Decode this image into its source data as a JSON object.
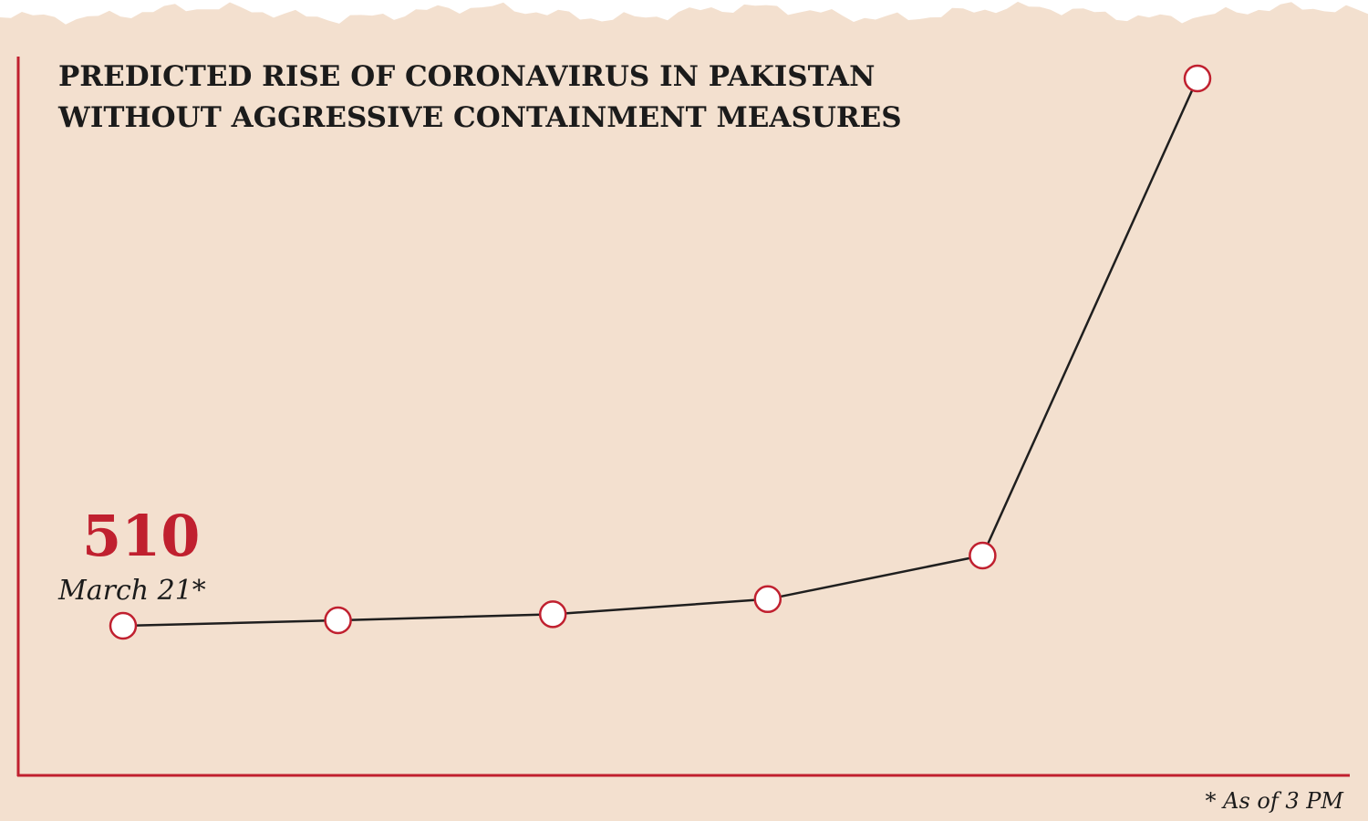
{
  "title_lines": [
    "PREDICTED RISE OF CORONAVIRUS IN PAKISTAN",
    "WITHOUT AGGRESSIVE CONTAINMENT MEASURES"
  ],
  "footnote": "* As of 3 PM",
  "colors": {
    "background": "#f3e0cf",
    "accent": "#c0202f",
    "line": "#1f1f1f",
    "marker_fill": "#ffffff"
  },
  "chart_data": {
    "type": "line",
    "title": "PREDICTED RISE OF CORONAVIRUS IN PAKISTAN WITHOUT AGGRESSIVE CONTAINMENT MEASURES",
    "xlabel": "",
    "ylabel": "",
    "grid": false,
    "legend": "none",
    "x_ticks_labeled": false,
    "y_ticks_labeled": false,
    "points": [
      {
        "step": 1,
        "value": 510,
        "date_label": "March 21*"
      },
      {
        "step": 2,
        "value": 600
      },
      {
        "step": 3,
        "value": 700
      },
      {
        "step": 4,
        "value": 950
      },
      {
        "step": 5,
        "value": 1670
      },
      {
        "step": 6,
        "value": 9550
      }
    ],
    "annotations": [
      {
        "point_index": 0,
        "value_text": "510",
        "date_text": "March 21*"
      }
    ]
  }
}
